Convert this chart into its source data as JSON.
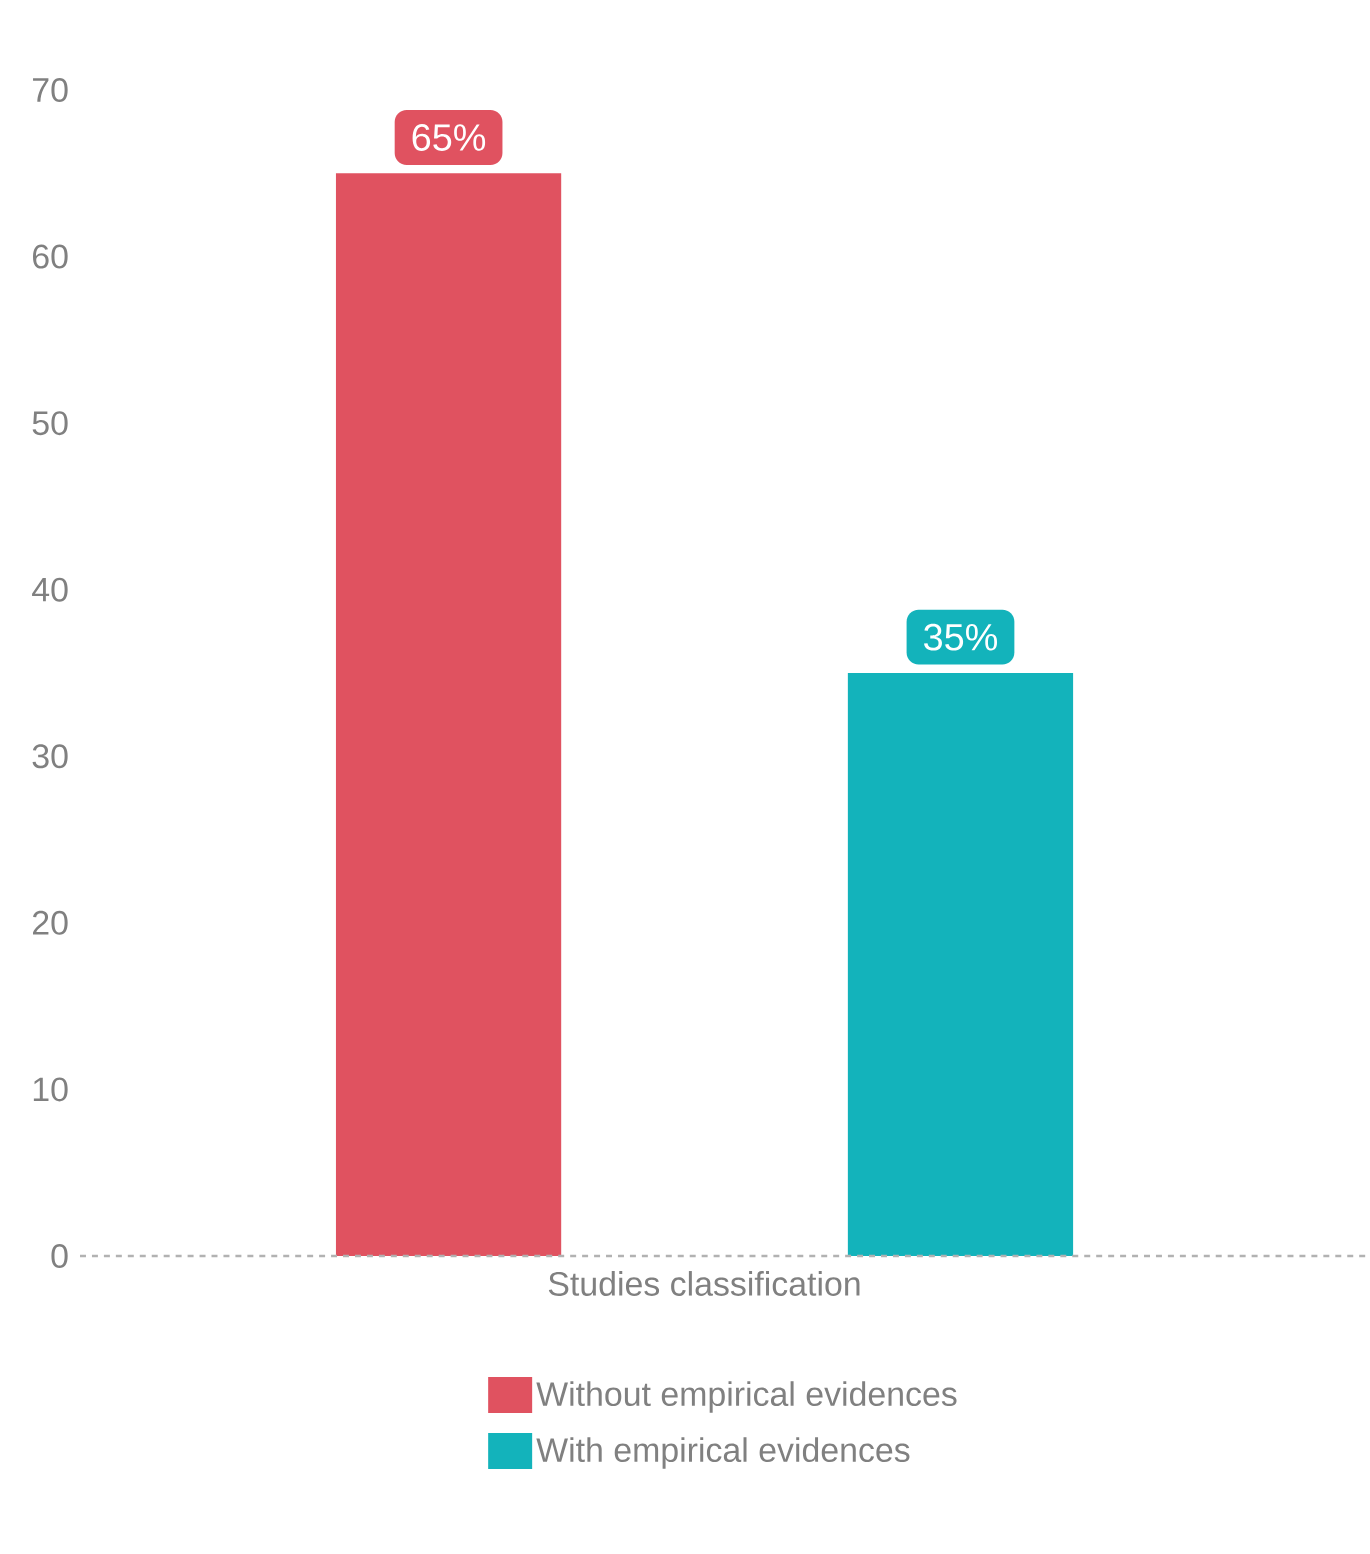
{
  "chart_data": {
    "type": "bar",
    "categories": [
      "Studies classification"
    ],
    "series": [
      {
        "name": "Without empirical evidences",
        "color": "#e05260",
        "values": [
          65
        ],
        "value_labels": [
          "65%"
        ]
      },
      {
        "name": "With empirical evidences",
        "color": "#13b3bb",
        "values": [
          35
        ],
        "value_labels": [
          "35%"
        ]
      }
    ],
    "ylim": [
      0,
      70
    ],
    "yticks": [
      0,
      10,
      20,
      30,
      40,
      50,
      60,
      70
    ],
    "legend": "bottom"
  }
}
